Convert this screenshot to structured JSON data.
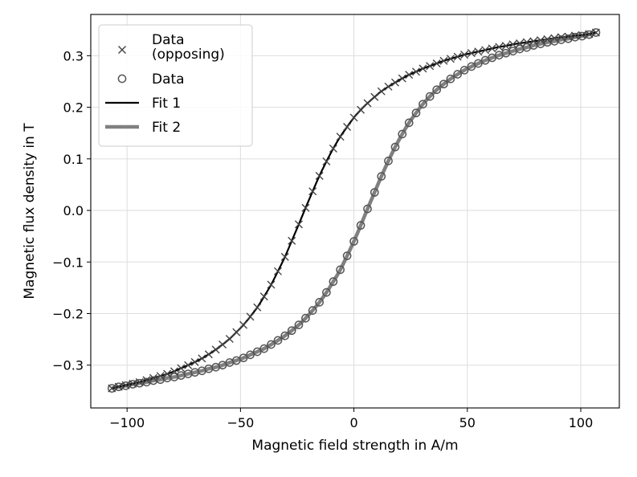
{
  "chart_data": {
    "type": "line",
    "title": "",
    "xlabel": "Magnetic field strength in A/m",
    "ylabel": "Magnetic flux density in T",
    "xlim": [
      -116,
      117
    ],
    "ylim": [
      -0.383,
      0.38
    ],
    "grid": true,
    "x_ticks": [
      -100,
      -50,
      0,
      50,
      100
    ],
    "x_tick_labels": [
      "−100",
      "−50",
      "0",
      "50",
      "100"
    ],
    "y_ticks": [
      -0.3,
      -0.2,
      -0.1,
      0.0,
      0.1,
      0.2,
      0.3
    ],
    "y_tick_labels": [
      "−0.3",
      "−0.2",
      "−0.1",
      "0.0",
      "0.1",
      "0.2",
      "0.3"
    ],
    "legend_position": "top-left",
    "series": [
      {
        "name": "Data\n (opposing)",
        "legend_lines": [
          "Data",
          " (opposing)"
        ],
        "marker": "x",
        "color": "#444444",
        "x": [
          -106.7,
          -103.7,
          -100.6,
          -97.5,
          -94.5,
          -91.4,
          -88.4,
          -85.3,
          -82.3,
          -79.2,
          -76.2,
          -73.1,
          -70.1,
          -67.0,
          -64.0,
          -60.9,
          -57.9,
          -54.8,
          -51.8,
          -48.7,
          -45.7,
          -42.6,
          -39.6,
          -36.5,
          -33.5,
          -30.4,
          -27.4,
          -24.3,
          -21.3,
          -18.2,
          -15.2,
          -12.1,
          -9.1,
          -6.0,
          -3.0,
          0.0,
          3.0,
          6.0,
          9.1,
          12.1,
          15.2,
          18.2,
          21.3,
          24.3,
          27.4,
          30.4,
          33.5,
          36.5,
          39.6,
          42.6,
          45.7,
          48.7,
          51.8,
          54.8,
          57.9,
          60.9,
          64.0,
          67.0,
          70.1,
          73.1,
          76.2,
          79.2,
          82.3,
          85.3,
          88.4,
          91.4,
          94.5,
          97.5,
          100.6,
          103.7,
          106.7
        ],
        "y": [
          -0.345,
          -0.342,
          -0.339,
          -0.336,
          -0.333,
          -0.329,
          -0.325,
          -0.321,
          -0.317,
          -0.312,
          -0.306,
          -0.3,
          -0.294,
          -0.287,
          -0.279,
          -0.27,
          -0.26,
          -0.249,
          -0.236,
          -0.222,
          -0.206,
          -0.188,
          -0.167,
          -0.144,
          -0.118,
          -0.09,
          -0.059,
          -0.027,
          0.005,
          0.037,
          0.067,
          0.095,
          0.12,
          0.143,
          0.162,
          0.18,
          0.195,
          0.208,
          0.22,
          0.231,
          0.24,
          0.248,
          0.256,
          0.263,
          0.269,
          0.275,
          0.28,
          0.285,
          0.29,
          0.294,
          0.298,
          0.302,
          0.305,
          0.308,
          0.311,
          0.314,
          0.317,
          0.319,
          0.322,
          0.324,
          0.326,
          0.328,
          0.33,
          0.332,
          0.334,
          0.336,
          0.337,
          0.339,
          0.34,
          0.342,
          0.345
        ]
      },
      {
        "name": "Data",
        "legend_lines": [
          "Data"
        ],
        "marker": "o",
        "color": "#555555",
        "x": [
          -106.7,
          -103.7,
          -100.6,
          -97.5,
          -94.5,
          -91.4,
          -88.4,
          -85.3,
          -82.3,
          -79.2,
          -76.2,
          -73.1,
          -70.1,
          -67.0,
          -64.0,
          -60.9,
          -57.9,
          -54.8,
          -51.8,
          -48.7,
          -45.7,
          -42.6,
          -39.6,
          -36.5,
          -33.5,
          -30.4,
          -27.4,
          -24.3,
          -21.3,
          -18.2,
          -15.2,
          -12.1,
          -9.1,
          -6.0,
          -3.0,
          0.0,
          3.0,
          6.0,
          9.1,
          12.1,
          15.2,
          18.2,
          21.3,
          24.3,
          27.4,
          30.4,
          33.5,
          36.5,
          39.6,
          42.6,
          45.7,
          48.7,
          51.8,
          54.8,
          57.9,
          60.9,
          64.0,
          67.0,
          70.1,
          73.1,
          76.2,
          79.2,
          82.3,
          85.3,
          88.4,
          91.4,
          94.5,
          97.5,
          100.6,
          103.7,
          106.7
        ],
        "y": [
          -0.345,
          -0.342,
          -0.34,
          -0.337,
          -0.335,
          -0.333,
          -0.33,
          -0.328,
          -0.325,
          -0.323,
          -0.32,
          -0.317,
          -0.314,
          -0.311,
          -0.307,
          -0.304,
          -0.3,
          -0.295,
          -0.291,
          -0.286,
          -0.28,
          -0.274,
          -0.268,
          -0.26,
          -0.252,
          -0.243,
          -0.233,
          -0.222,
          -0.209,
          -0.194,
          -0.178,
          -0.159,
          -0.138,
          -0.115,
          -0.088,
          -0.06,
          -0.029,
          0.003,
          0.035,
          0.066,
          0.096,
          0.123,
          0.148,
          0.17,
          0.189,
          0.206,
          0.221,
          0.234,
          0.245,
          0.255,
          0.264,
          0.272,
          0.279,
          0.285,
          0.291,
          0.296,
          0.301,
          0.305,
          0.309,
          0.313,
          0.316,
          0.32,
          0.323,
          0.326,
          0.328,
          0.331,
          0.333,
          0.336,
          0.338,
          0.341,
          0.345
        ]
      },
      {
        "name": "Fit 1",
        "legend_lines": [
          "Fit 1"
        ],
        "marker": "line",
        "color": "#000000",
        "fit_of": "Data\n (opposing)"
      },
      {
        "name": "Fit 2",
        "legend_lines": [
          "Fit 2"
        ],
        "marker": "line",
        "color": "#808080",
        "fit_of": "Data"
      }
    ]
  }
}
